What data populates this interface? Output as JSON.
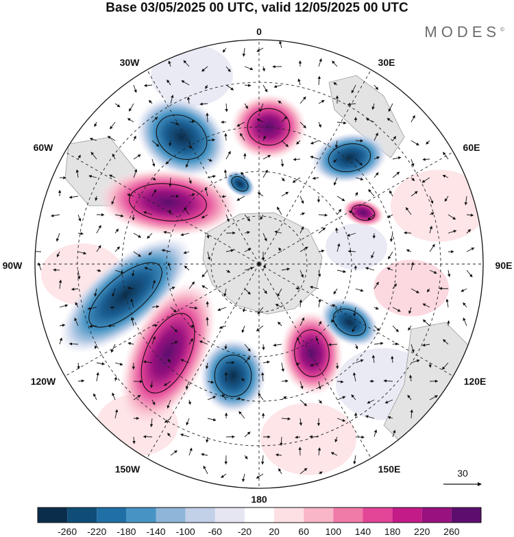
{
  "title": "Base 03/05/2025 00 UTC, valid 12/05/2025 00 UTC",
  "brand": "MODES",
  "brand_mark": "©",
  "longitude_labels": [
    {
      "key": "0",
      "text": "0"
    },
    {
      "key": "30E",
      "text": "30E"
    },
    {
      "key": "60E",
      "text": "60E"
    },
    {
      "key": "90E",
      "text": "90E"
    },
    {
      "key": "120E",
      "text": "120E"
    },
    {
      "key": "150E",
      "text": "150E"
    },
    {
      "key": "180",
      "text": "180"
    },
    {
      "key": "150W",
      "text": "150W"
    },
    {
      "key": "120W",
      "text": "120W"
    },
    {
      "key": "90W",
      "text": "90W"
    },
    {
      "key": "60W",
      "text": "60W"
    },
    {
      "key": "30W",
      "text": "30W"
    }
  ],
  "vector_reference": "30",
  "colorbar": {
    "colors": [
      "#0b2d4c",
      "#0f4d77",
      "#2070a6",
      "#4794c4",
      "#8fb5d8",
      "#c2d0e8",
      "#e6e6f3",
      "#ffffff",
      "#fde0e4",
      "#f8b6c8",
      "#f07aa8",
      "#e34597",
      "#c31b87",
      "#97117f",
      "#5c0e6e"
    ],
    "tick_labels": [
      "-260",
      "-220",
      "-180",
      "-140",
      "-100",
      "-60",
      "-20",
      "20",
      "60",
      "100",
      "140",
      "180",
      "220",
      "260"
    ]
  },
  "anomaly_features": [
    {
      "sign": "negative",
      "intensity": 0.95
    },
    {
      "sign": "positive",
      "intensity": 0.85
    },
    {
      "sign": "negative",
      "intensity": 0.7
    },
    {
      "sign": "positive",
      "intensity": 0.95
    },
    {
      "sign": "negative",
      "intensity": 0.9
    },
    {
      "sign": "positive",
      "intensity": 0.97
    },
    {
      "sign": "negative",
      "intensity": 0.75
    },
    {
      "sign": "positive",
      "intensity": 0.9
    },
    {
      "sign": "negative",
      "intensity": 0.75
    },
    {
      "sign": "positive",
      "intensity": 0.6
    },
    {
      "sign": "negative",
      "intensity": 0.45
    }
  ]
}
